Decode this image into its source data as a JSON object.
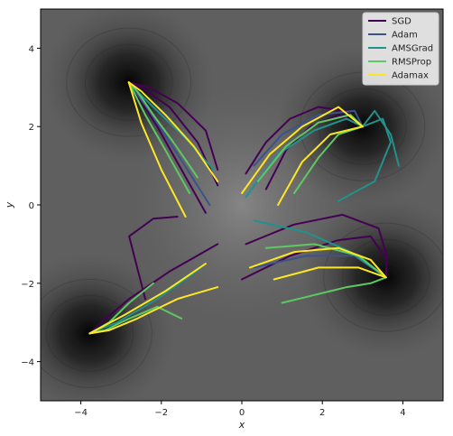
{
  "chart_data": {
    "type": "line",
    "title": "",
    "xlabel": "x",
    "ylabel": "y",
    "xlim": [
      -5,
      5
    ],
    "ylim": [
      -5,
      5
    ],
    "x_ticks": [
      -4,
      -2,
      0,
      2,
      4
    ],
    "y_ticks": [
      -4,
      -2,
      0,
      2,
      4
    ],
    "x_tick_labels": [
      "−4",
      "−2",
      "0",
      "2",
      "4"
    ],
    "y_tick_labels": [
      "−4",
      "−2",
      "0",
      "2",
      "4"
    ],
    "grid": false,
    "legend_position": "top-right",
    "background": "filled contour map of a loss surface with four dark minima",
    "minima": [
      {
        "x": -2.81,
        "y": 3.13
      },
      {
        "x": 3.0,
        "y": 2.0
      },
      {
        "x": -3.78,
        "y": -3.28
      },
      {
        "x": 3.58,
        "y": -1.85
      }
    ],
    "series": [
      {
        "name": "SGD",
        "color": "#440154",
        "trajectories": [
          [
            [
              -0.6,
              0.9
            ],
            [
              -0.9,
              1.9
            ],
            [
              -1.6,
              2.6
            ],
            [
              -2.3,
              3.0
            ],
            [
              -2.81,
              3.13
            ]
          ],
          [
            [
              -0.6,
              0.5
            ],
            [
              -1.1,
              1.6
            ],
            [
              -1.8,
              2.5
            ],
            [
              -2.5,
              3.0
            ],
            [
              -2.81,
              3.13
            ]
          ],
          [
            [
              -0.9,
              -0.2
            ],
            [
              -1.5,
              0.9
            ],
            [
              -2.1,
              2.0
            ],
            [
              -2.6,
              2.8
            ],
            [
              -2.81,
              3.13
            ]
          ],
          [
            [
              0.1,
              0.8
            ],
            [
              0.6,
              1.6
            ],
            [
              1.2,
              2.2
            ],
            [
              1.9,
              2.5
            ],
            [
              2.6,
              2.4
            ],
            [
              3.0,
              2.0
            ]
          ],
          [
            [
              0.6,
              0.4
            ],
            [
              1.1,
              1.4
            ],
            [
              1.7,
              2.0
            ],
            [
              2.4,
              2.3
            ],
            [
              3.0,
              2.0
            ]
          ],
          [
            [
              0.0,
              -1.9
            ],
            [
              1.2,
              -1.3
            ],
            [
              2.4,
              -0.9
            ],
            [
              3.2,
              -0.8
            ],
            [
              3.6,
              -1.4
            ],
            [
              3.58,
              -1.85
            ]
          ],
          [
            [
              0.1,
              -1.0
            ],
            [
              1.3,
              -0.5
            ],
            [
              2.5,
              -0.25
            ],
            [
              3.4,
              -0.6
            ],
            [
              3.6,
              -1.3
            ],
            [
              3.58,
              -1.85
            ]
          ],
          [
            [
              -2.4,
              -2.4
            ],
            [
              -2.8,
              -0.8
            ],
            [
              -2.2,
              -0.35
            ],
            [
              -1.6,
              -0.3
            ]
          ],
          [
            [
              -0.6,
              -1.0
            ],
            [
              -1.8,
              -1.7
            ],
            [
              -2.8,
              -2.4
            ],
            [
              -3.5,
              -3.0
            ],
            [
              -3.78,
              -3.28
            ]
          ]
        ]
      },
      {
        "name": "Adam",
        "color": "#3b528b",
        "trajectories": [
          [
            [
              0.3,
              1.0
            ],
            [
              1.0,
              1.8
            ],
            [
              1.9,
              2.3
            ],
            [
              2.8,
              2.4
            ],
            [
              3.0,
              2.0
            ]
          ],
          [
            [
              -0.8,
              0.0
            ],
            [
              -1.6,
              1.3
            ],
            [
              -2.3,
              2.4
            ],
            [
              -2.81,
              3.13
            ]
          ],
          [
            [
              0.3,
              -1.6
            ],
            [
              1.6,
              -1.3
            ],
            [
              2.8,
              -1.3
            ],
            [
              3.58,
              -1.85
            ]
          ]
        ]
      },
      {
        "name": "AMSGrad",
        "color": "#21918c",
        "trajectories": [
          [
            [
              -0.7,
              0.9
            ],
            [
              -1.4,
              1.7
            ],
            [
              -2.1,
              2.4
            ],
            [
              -2.6,
              2.9
            ],
            [
              -2.81,
              3.13
            ]
          ],
          [
            [
              0.1,
              0.2
            ],
            [
              0.9,
              1.3
            ],
            [
              1.8,
              1.9
            ],
            [
              2.6,
              2.2
            ],
            [
              3.0,
              2.0
            ]
          ],
          [
            [
              3.9,
              1.0
            ],
            [
              3.7,
              1.8
            ],
            [
              3.3,
              2.4
            ],
            [
              3.0,
              2.0
            ]
          ],
          [
            [
              2.4,
              0.1
            ],
            [
              3.3,
              0.6
            ],
            [
              3.7,
              1.6
            ],
            [
              3.5,
              2.2
            ],
            [
              3.0,
              2.0
            ]
          ],
          [
            [
              0.3,
              -0.4
            ],
            [
              1.6,
              -0.7
            ],
            [
              2.7,
              -1.2
            ],
            [
              3.58,
              -1.85
            ]
          ],
          [
            [
              -1.0,
              -1.6
            ],
            [
              -2.1,
              -2.4
            ],
            [
              -3.1,
              -3.0
            ],
            [
              -3.78,
              -3.28
            ]
          ]
        ]
      },
      {
        "name": "RMSProp",
        "color": "#5ec962",
        "trajectories": [
          [
            [
              -1.1,
              0.7
            ],
            [
              -1.7,
              1.6
            ],
            [
              -2.2,
              2.3
            ],
            [
              -2.6,
              2.9
            ],
            [
              -2.81,
              3.13
            ]
          ],
          [
            [
              -1.3,
              0.3
            ],
            [
              -1.9,
              1.4
            ],
            [
              -2.4,
              2.3
            ],
            [
              -2.81,
              3.13
            ]
          ],
          [
            [
              0.4,
              0.6
            ],
            [
              1.1,
              1.5
            ],
            [
              1.9,
              2.1
            ],
            [
              2.7,
              2.3
            ],
            [
              3.0,
              2.0
            ]
          ],
          [
            [
              1.3,
              0.3
            ],
            [
              1.9,
              1.2
            ],
            [
              2.4,
              1.8
            ],
            [
              3.0,
              2.0
            ]
          ],
          [
            [
              1.0,
              -2.5
            ],
            [
              1.8,
              -2.3
            ],
            [
              2.6,
              -2.1
            ],
            [
              3.2,
              -2.0
            ],
            [
              3.58,
              -1.85
            ]
          ],
          [
            [
              0.6,
              -1.1
            ],
            [
              1.8,
              -1.0
            ],
            [
              2.9,
              -1.3
            ],
            [
              3.58,
              -1.85
            ]
          ],
          [
            [
              -1.5,
              -2.9
            ],
            [
              -2.1,
              -2.6
            ],
            [
              -2.8,
              -2.9
            ],
            [
              -3.4,
              -3.2
            ],
            [
              -3.78,
              -3.28
            ]
          ],
          [
            [
              -2.2,
              -2.0
            ],
            [
              -2.8,
              -2.5
            ],
            [
              -3.3,
              -3.0
            ],
            [
              -3.78,
              -3.28
            ]
          ]
        ]
      },
      {
        "name": "Adamax",
        "color": "#fde725",
        "trajectories": [
          [
            [
              -0.6,
              0.6
            ],
            [
              -1.2,
              1.5
            ],
            [
              -1.9,
              2.3
            ],
            [
              -2.5,
              2.9
            ],
            [
              -2.81,
              3.13
            ]
          ],
          [
            [
              -1.4,
              -0.3
            ],
            [
              -2.0,
              0.9
            ],
            [
              -2.5,
              2.1
            ],
            [
              -2.81,
              3.13
            ]
          ],
          [
            [
              0.0,
              0.3
            ],
            [
              0.7,
              1.3
            ],
            [
              1.5,
              2.0
            ],
            [
              2.4,
              2.5
            ],
            [
              3.0,
              2.0
            ]
          ],
          [
            [
              0.9,
              0.0
            ],
            [
              1.5,
              1.1
            ],
            [
              2.2,
              1.8
            ],
            [
              3.0,
              2.0
            ]
          ],
          [
            [
              0.2,
              -1.6
            ],
            [
              1.3,
              -1.2
            ],
            [
              2.4,
              -1.1
            ],
            [
              3.2,
              -1.4
            ],
            [
              3.58,
              -1.85
            ]
          ],
          [
            [
              0.8,
              -1.9
            ],
            [
              1.9,
              -1.6
            ],
            [
              2.9,
              -1.6
            ],
            [
              3.58,
              -1.85
            ]
          ],
          [
            [
              -0.6,
              -2.1
            ],
            [
              -1.6,
              -2.4
            ],
            [
              -2.6,
              -2.9
            ],
            [
              -3.3,
              -3.2
            ],
            [
              -3.78,
              -3.28
            ]
          ],
          [
            [
              -0.9,
              -1.5
            ],
            [
              -1.9,
              -2.2
            ],
            [
              -2.9,
              -2.8
            ],
            [
              -3.78,
              -3.28
            ]
          ]
        ]
      }
    ]
  }
}
